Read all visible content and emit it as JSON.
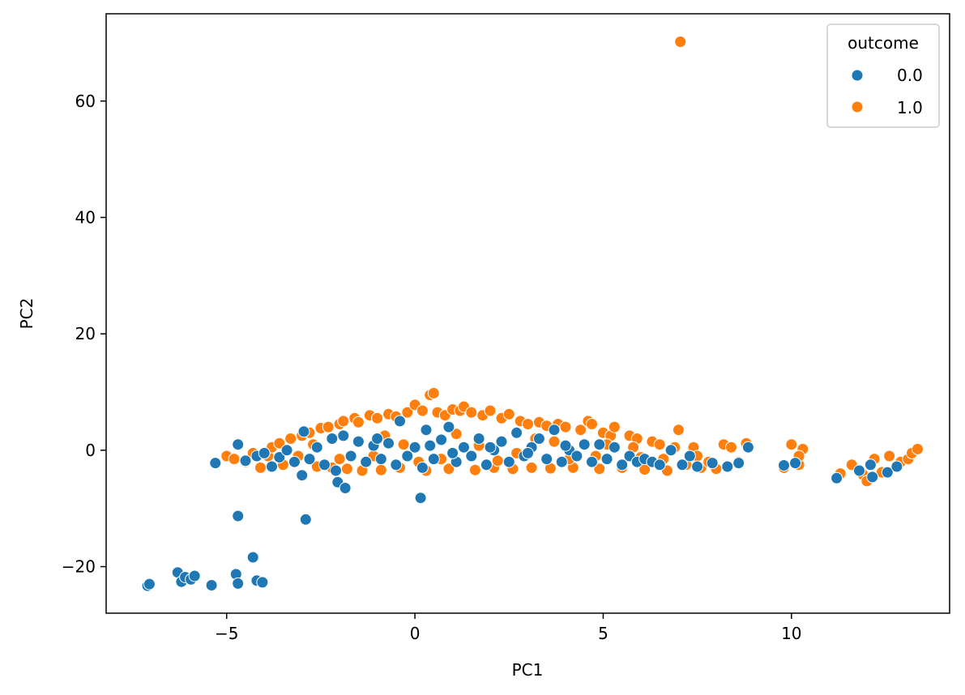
{
  "chart_data": {
    "type": "scatter",
    "xlabel": "PC1",
    "ylabel": "PC2",
    "xlim": [
      -8.2,
      14.2
    ],
    "ylim": [
      -28,
      75
    ],
    "x_ticks": [
      -5,
      0,
      5,
      10
    ],
    "y_ticks": [
      -20,
      0,
      20,
      40,
      60
    ],
    "grid": false,
    "legend": {
      "title": "outcome",
      "placement": "top-right",
      "entries": [
        {
          "label": "0.0",
          "color": "#1f77b4"
        },
        {
          "label": "1.0",
          "color": "#ff7f0e"
        }
      ]
    },
    "series": [
      {
        "name": "1.0",
        "color": "#ff7f0e",
        "points": [
          [
            -5.0,
            -1.0
          ],
          [
            -4.8,
            -1.5
          ],
          [
            -4.5,
            -2.0
          ],
          [
            -4.3,
            -0.5
          ],
          [
            -4.1,
            -3.0
          ],
          [
            -3.9,
            -1.0
          ],
          [
            -3.8,
            0.5
          ],
          [
            -3.6,
            1.2
          ],
          [
            -3.5,
            -2.5
          ],
          [
            -3.3,
            2.0
          ],
          [
            -3.1,
            -1.0
          ],
          [
            -3.0,
            2.5
          ],
          [
            -2.8,
            3.0
          ],
          [
            -2.6,
            -2.8
          ],
          [
            -2.5,
            3.8
          ],
          [
            -2.3,
            4.0
          ],
          [
            -2.2,
            -3.0
          ],
          [
            -2.0,
            4.5
          ],
          [
            -1.9,
            5.0
          ],
          [
            -1.8,
            -3.2
          ],
          [
            -1.6,
            5.5
          ],
          [
            -1.5,
            4.8
          ],
          [
            -1.4,
            -3.5
          ],
          [
            -1.2,
            6.0
          ],
          [
            -1.0,
            5.5
          ],
          [
            -0.9,
            -3.4
          ],
          [
            -0.7,
            6.2
          ],
          [
            -0.5,
            5.8
          ],
          [
            -0.4,
            -3.0
          ],
          [
            -0.2,
            6.5
          ],
          [
            0.0,
            7.8
          ],
          [
            0.2,
            6.8
          ],
          [
            0.3,
            -3.5
          ],
          [
            0.4,
            9.5
          ],
          [
            0.5,
            9.8
          ],
          [
            0.6,
            6.5
          ],
          [
            0.8,
            6.0
          ],
          [
            0.9,
            -3.2
          ],
          [
            1.0,
            7.0
          ],
          [
            1.2,
            6.8
          ],
          [
            1.3,
            7.5
          ],
          [
            1.5,
            6.5
          ],
          [
            1.6,
            -3.4
          ],
          [
            1.8,
            6.0
          ],
          [
            2.0,
            6.8
          ],
          [
            2.1,
            -3.0
          ],
          [
            2.3,
            5.5
          ],
          [
            2.5,
            6.2
          ],
          [
            2.6,
            -3.2
          ],
          [
            2.8,
            5.0
          ],
          [
            3.0,
            4.5
          ],
          [
            3.1,
            -3.0
          ],
          [
            3.3,
            4.8
          ],
          [
            3.5,
            4.2
          ],
          [
            3.6,
            -3.1
          ],
          [
            3.8,
            4.5
          ],
          [
            4.0,
            4.0
          ],
          [
            4.2,
            -3.0
          ],
          [
            4.4,
            3.5
          ],
          [
            4.6,
            5.0
          ],
          [
            4.7,
            4.5
          ],
          [
            4.9,
            -3.2
          ],
          [
            5.0,
            3.0
          ],
          [
            5.2,
            2.5
          ],
          [
            5.3,
            4.0
          ],
          [
            5.5,
            -3.0
          ],
          [
            5.7,
            2.5
          ],
          [
            5.9,
            2.0
          ],
          [
            6.1,
            -3.3
          ],
          [
            6.3,
            1.5
          ],
          [
            6.5,
            1.0
          ],
          [
            6.7,
            -3.5
          ],
          [
            6.9,
            0.5
          ],
          [
            7.0,
            3.5
          ],
          [
            7.05,
            70.2
          ],
          [
            7.2,
            -2.5
          ],
          [
            7.4,
            0.5
          ],
          [
            7.6,
            -3.0
          ],
          [
            7.8,
            -2.0
          ],
          [
            8.0,
            -3.2
          ],
          [
            8.2,
            1.0
          ],
          [
            8.4,
            0.5
          ],
          [
            8.6,
            -2.0
          ],
          [
            8.8,
            1.2
          ],
          [
            9.8,
            -3.0
          ],
          [
            10.0,
            1.0
          ],
          [
            10.2,
            -2.5
          ],
          [
            10.3,
            0.2
          ],
          [
            10.2,
            -1.0
          ],
          [
            11.3,
            -4.0
          ],
          [
            11.6,
            -2.5
          ],
          [
            11.9,
            -4.2
          ],
          [
            12.0,
            -5.3
          ],
          [
            12.2,
            -1.5
          ],
          [
            12.4,
            -3.8
          ],
          [
            12.6,
            -1.0
          ],
          [
            12.9,
            -2.0
          ],
          [
            13.1,
            -1.5
          ],
          [
            13.2,
            -0.5
          ],
          [
            13.35,
            0.2
          ],
          [
            -1.1,
            -1.0
          ],
          [
            -0.3,
            1.0
          ],
          [
            0.7,
            -1.5
          ],
          [
            1.7,
            0.8
          ],
          [
            2.7,
            -0.5
          ],
          [
            3.7,
            1.5
          ],
          [
            4.8,
            -1.0
          ],
          [
            5.8,
            0.5
          ],
          [
            6.6,
            -1.5
          ],
          [
            7.5,
            -1.0
          ],
          [
            -2.7,
            1.0
          ],
          [
            -2.0,
            -1.5
          ],
          [
            -0.8,
            2.5
          ],
          [
            0.1,
            -2.0
          ],
          [
            1.1,
            2.8
          ],
          [
            2.2,
            -1.8
          ],
          [
            3.2,
            2.0
          ],
          [
            4.1,
            -1.5
          ],
          [
            5.1,
            1.0
          ],
          [
            6.0,
            -1.2
          ]
        ]
      },
      {
        "name": "0.0",
        "color": "#1f77b4",
        "points": [
          [
            -7.1,
            -23.3
          ],
          [
            -7.05,
            -23.0
          ],
          [
            -6.3,
            -21.0
          ],
          [
            -6.2,
            -22.6
          ],
          [
            -6.1,
            -21.8
          ],
          [
            -5.95,
            -22.2
          ],
          [
            -5.85,
            -21.6
          ],
          [
            -5.4,
            -23.2
          ],
          [
            -4.75,
            -21.3
          ],
          [
            -4.7,
            -22.9
          ],
          [
            -4.3,
            -18.4
          ],
          [
            -4.2,
            -22.4
          ],
          [
            -4.05,
            -22.7
          ],
          [
            -4.7,
            -11.3
          ],
          [
            -2.9,
            -11.9
          ],
          [
            0.15,
            -8.2
          ],
          [
            -5.3,
            -2.2
          ],
          [
            -4.7,
            1.0
          ],
          [
            -4.5,
            -1.8
          ],
          [
            -4.2,
            -1.0
          ],
          [
            -4.0,
            -0.5
          ],
          [
            -3.8,
            -2.8
          ],
          [
            -3.6,
            -1.2
          ],
          [
            -3.4,
            0.0
          ],
          [
            -3.2,
            -2.0
          ],
          [
            -3.0,
            -4.3
          ],
          [
            -2.95,
            3.2
          ],
          [
            -2.8,
            -1.5
          ],
          [
            -2.6,
            0.5
          ],
          [
            -2.4,
            -2.5
          ],
          [
            -2.2,
            2.0
          ],
          [
            -2.1,
            -3.5
          ],
          [
            -2.05,
            -5.5
          ],
          [
            -1.85,
            -6.5
          ],
          [
            -1.9,
            2.5
          ],
          [
            -1.7,
            -1.0
          ],
          [
            -1.5,
            1.5
          ],
          [
            -1.3,
            -2.0
          ],
          [
            -1.1,
            0.8
          ],
          [
            -0.9,
            -1.5
          ],
          [
            -0.7,
            1.2
          ],
          [
            -0.5,
            -2.5
          ],
          [
            -0.4,
            5.0
          ],
          [
            -0.2,
            -1.0
          ],
          [
            0.0,
            0.5
          ],
          [
            0.2,
            -3.0
          ],
          [
            0.3,
            3.5
          ],
          [
            0.5,
            -1.5
          ],
          [
            0.7,
            1.8
          ],
          [
            0.9,
            4.0
          ],
          [
            1.1,
            -2.0
          ],
          [
            1.3,
            0.5
          ],
          [
            1.5,
            -1.0
          ],
          [
            1.7,
            2.0
          ],
          [
            1.9,
            -2.5
          ],
          [
            2.1,
            0.0
          ],
          [
            2.3,
            1.5
          ],
          [
            2.5,
            -2.0
          ],
          [
            2.7,
            3.0
          ],
          [
            2.9,
            -1.0
          ],
          [
            3.1,
            0.5
          ],
          [
            3.3,
            2.0
          ],
          [
            3.5,
            -1.5
          ],
          [
            3.7,
            3.5
          ],
          [
            3.9,
            -2.0
          ],
          [
            4.1,
            0.0
          ],
          [
            4.3,
            -1.0
          ],
          [
            4.5,
            1.0
          ],
          [
            4.7,
            -2.0
          ],
          [
            4.9,
            1.0
          ],
          [
            5.1,
            -1.5
          ],
          [
            5.3,
            0.5
          ],
          [
            5.5,
            -2.5
          ],
          [
            5.7,
            -1.0
          ],
          [
            5.9,
            -2.0
          ],
          [
            6.1,
            -1.5
          ],
          [
            6.3,
            -2.0
          ],
          [
            6.5,
            -2.5
          ],
          [
            6.8,
            0.0
          ],
          [
            7.1,
            -2.5
          ],
          [
            7.3,
            -1.0
          ],
          [
            7.5,
            -2.8
          ],
          [
            7.9,
            -2.2
          ],
          [
            8.3,
            -2.8
          ],
          [
            8.6,
            -2.2
          ],
          [
            8.85,
            0.5
          ],
          [
            9.8,
            -2.6
          ],
          [
            10.1,
            -2.2
          ],
          [
            11.2,
            -4.8
          ],
          [
            11.8,
            -3.5
          ],
          [
            12.1,
            -2.5
          ],
          [
            12.15,
            -4.6
          ],
          [
            12.55,
            -3.8
          ],
          [
            12.8,
            -2.8
          ],
          [
            -1.0,
            2.0
          ],
          [
            0.4,
            0.8
          ],
          [
            1.0,
            -0.5
          ],
          [
            2.0,
            0.5
          ],
          [
            3.0,
            -0.5
          ],
          [
            4.0,
            0.8
          ]
        ]
      }
    ]
  }
}
